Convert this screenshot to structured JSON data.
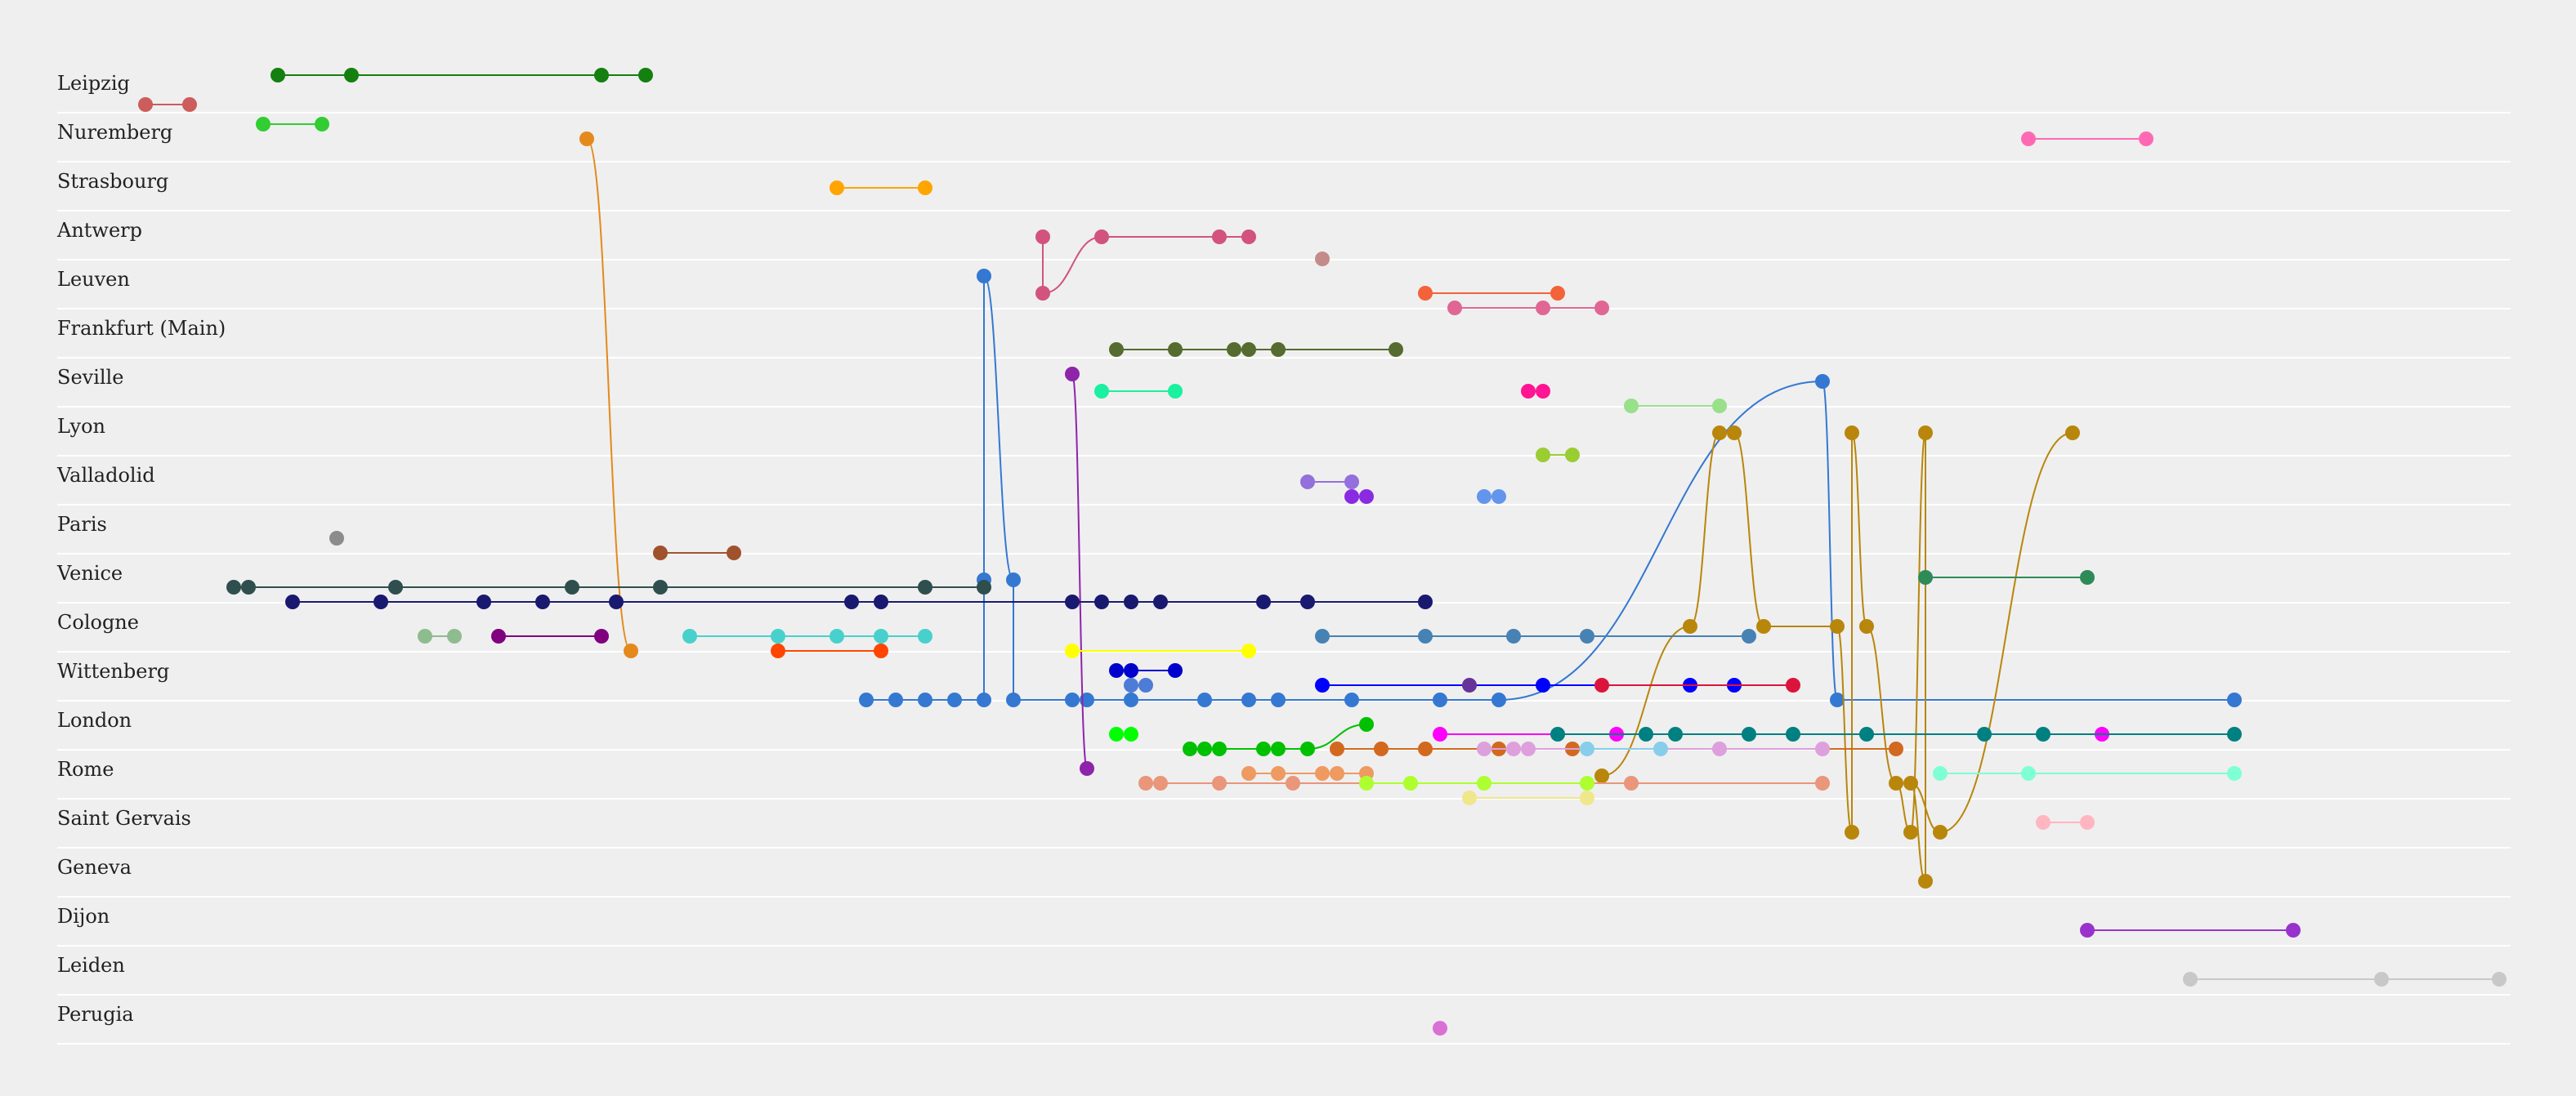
{
  "chart_data": {
    "type": "scatter",
    "title": "",
    "xlabel": "",
    "ylabel": "",
    "x_unit": "column index (no axis printed)",
    "xlim": [
      0,
      84
    ],
    "grid": "horizontal row separators",
    "rows": [
      "Leipzig",
      "Nuremberg",
      "Strasbourg",
      "Antwerp",
      "Leuven",
      "Frankfurt (Main)",
      "Seville",
      "Lyon",
      "Valladolid",
      "Paris",
      "Venice",
      "Cologne",
      "Wittenberg",
      "London",
      "Rome",
      "Saint Gervais",
      "Geneva",
      "Dijon",
      "Leiden",
      "Perugia"
    ],
    "series": [
      {
        "color": "#cd5c5c",
        "points": [
          [
            3,
            0,
            0.3
          ],
          [
            4.5,
            0,
            0.3
          ]
        ]
      },
      {
        "color": "#13800f",
        "points": [
          [
            7.5,
            0,
            -0.3
          ],
          [
            10,
            0,
            -0.3
          ],
          [
            18.5,
            0,
            -0.3
          ],
          [
            20,
            0,
            -0.3
          ]
        ]
      },
      {
        "color": "#32cd32",
        "points": [
          [
            7,
            1,
            -0.3
          ],
          [
            9,
            1,
            -0.3
          ]
        ]
      },
      {
        "color": "#e4891c",
        "points": [
          [
            18,
            1,
            0
          ],
          [
            19.5,
            11,
            0.45
          ]
        ]
      },
      {
        "color": "#ff69b4",
        "points": [
          [
            67,
            1,
            0
          ],
          [
            71,
            1,
            0
          ]
        ]
      },
      {
        "color": "#ffa500",
        "points": [
          [
            26.5,
            2,
            0
          ],
          [
            29.5,
            2,
            0
          ]
        ]
      },
      {
        "color": "#d1537e",
        "points": [
          [
            33.5,
            3,
            0
          ],
          [
            33.5,
            4,
            0.15
          ],
          [
            35.5,
            3,
            0
          ],
          [
            39.5,
            3,
            0
          ],
          [
            40.5,
            3,
            0
          ]
        ]
      },
      {
        "color": "#c48b8b",
        "points": [
          [
            43,
            3,
            0.45
          ]
        ]
      },
      {
        "color": "#3478d1",
        "points": [
          [
            27.5,
            12,
            0.45
          ],
          [
            28.5,
            12,
            0.45
          ],
          [
            29.5,
            12,
            0.45
          ],
          [
            30.5,
            12,
            0.45
          ],
          [
            31.5,
            12,
            0.45
          ],
          [
            31.5,
            10,
            0
          ],
          [
            31.5,
            3.8,
            0
          ],
          [
            32.5,
            10,
            0
          ],
          [
            32.5,
            12,
            0.45
          ],
          [
            34.5,
            12,
            0.45
          ],
          [
            35,
            12,
            0.45
          ],
          [
            36.5,
            12,
            0.45
          ],
          [
            39,
            12,
            0.45
          ],
          [
            40.5,
            12,
            0.45
          ],
          [
            41.5,
            12,
            0.45
          ],
          [
            44,
            12,
            0.45
          ],
          [
            47,
            12,
            0.45
          ],
          [
            49,
            12,
            0.45
          ],
          [
            60,
            5.95,
            0
          ],
          [
            60.5,
            12,
            0.45
          ],
          [
            74,
            12,
            0.45
          ]
        ]
      },
      {
        "color": "#f4623a",
        "points": [
          [
            46.5,
            4,
            0.15
          ],
          [
            51,
            4,
            0.15
          ]
        ]
      },
      {
        "color": "#e06694",
        "points": [
          [
            47.5,
            4,
            0.45
          ],
          [
            50.5,
            4,
            0.45
          ],
          [
            52.5,
            4,
            0.45
          ]
        ]
      },
      {
        "color": "#556b2f",
        "points": [
          [
            36,
            5,
            0.3
          ],
          [
            38,
            5,
            0.3
          ],
          [
            40,
            5,
            0.3
          ],
          [
            40.5,
            5,
            0.3
          ],
          [
            41.5,
            5,
            0.3
          ],
          [
            45.5,
            5,
            0.3
          ]
        ]
      },
      {
        "color": "#8e24aa",
        "points": [
          [
            34.5,
            5.8,
            0
          ],
          [
            35,
            13.85,
            0
          ]
        ]
      },
      {
        "color": "#19f0a0",
        "points": [
          [
            35.5,
            6,
            0.15
          ],
          [
            38,
            6,
            0.15
          ]
        ]
      },
      {
        "color": "#ff1493",
        "points": [
          [
            50,
            6,
            0.15
          ],
          [
            50.5,
            6,
            0.15
          ]
        ]
      },
      {
        "color": "#98e08a",
        "points": [
          [
            53.5,
            6,
            0.45
          ],
          [
            56.5,
            6,
            0.45
          ]
        ]
      },
      {
        "color": "#b8860b",
        "points": [
          [
            52.5,
            14,
            0
          ],
          [
            55.5,
            11,
            -0.05
          ],
          [
            56.5,
            7,
            0
          ],
          [
            57,
            7,
            0
          ],
          [
            58,
            11,
            -0.05
          ],
          [
            60.5,
            11,
            -0.05
          ],
          [
            61,
            15,
            0.15
          ],
          [
            61,
            7,
            0
          ],
          [
            61.5,
            11,
            -0.05
          ],
          [
            62.5,
            14,
            0.15
          ],
          [
            63,
            15,
            0.15
          ],
          [
            63.5,
            7,
            0
          ],
          [
            63.5,
            16,
            0.15
          ],
          [
            63,
            14,
            0.15
          ],
          [
            64,
            15,
            0.15
          ],
          [
            68.5,
            7,
            0
          ]
        ]
      },
      {
        "color": "#9acd32",
        "points": [
          [
            50.5,
            7,
            0.45
          ],
          [
            51.5,
            7,
            0.45
          ]
        ]
      },
      {
        "color": "#9370db",
        "points": [
          [
            42.5,
            8,
            0
          ],
          [
            44,
            8,
            0
          ]
        ]
      },
      {
        "color": "#8a2be2",
        "points": [
          [
            44,
            8,
            0.3
          ],
          [
            44.5,
            8,
            0.3
          ]
        ]
      },
      {
        "color": "#6495ed",
        "points": [
          [
            48.5,
            8,
            0.3
          ],
          [
            49,
            8,
            0.3
          ]
        ]
      },
      {
        "color": "#8c8c8c",
        "points": [
          [
            9.5,
            9,
            0.15
          ]
        ]
      },
      {
        "color": "#a0522d",
        "points": [
          [
            20.5,
            9,
            0.45
          ],
          [
            23,
            9,
            0.45
          ]
        ]
      },
      {
        "color": "#2f4f4f",
        "points": [
          [
            6,
            10,
            0.15
          ],
          [
            6.5,
            10,
            0.15
          ],
          [
            11.5,
            10,
            0.15
          ],
          [
            17.5,
            10,
            0.15
          ],
          [
            20.5,
            10,
            0.15
          ],
          [
            29.5,
            10,
            0.15
          ],
          [
            31.5,
            10,
            0.15
          ]
        ]
      },
      {
        "color": "#2e8b57",
        "points": [
          [
            63.5,
            10,
            -0.05
          ],
          [
            69,
            10,
            -0.05
          ]
        ]
      },
      {
        "color": "#191970",
        "points": [
          [
            8,
            10,
            0.45
          ],
          [
            11,
            10,
            0.45
          ],
          [
            14.5,
            10,
            0.45
          ],
          [
            16.5,
            10,
            0.45
          ],
          [
            19,
            10,
            0.45
          ],
          [
            27,
            10,
            0.45
          ],
          [
            28,
            10,
            0.45
          ],
          [
            34.5,
            10,
            0.45
          ],
          [
            35.5,
            10,
            0.45
          ],
          [
            36.5,
            10,
            0.45
          ],
          [
            37.5,
            10,
            0.45
          ],
          [
            41,
            10,
            0.45
          ],
          [
            42.5,
            10,
            0.45
          ],
          [
            46.5,
            10,
            0.45
          ]
        ]
      },
      {
        "color": "#8fbc8f",
        "points": [
          [
            12.5,
            11,
            0.15
          ],
          [
            13.5,
            11,
            0.15
          ]
        ]
      },
      {
        "color": "#800080",
        "points": [
          [
            15,
            11,
            0.15
          ],
          [
            18.5,
            11,
            0.15
          ]
        ]
      },
      {
        "color": "#48d1cc",
        "points": [
          [
            21.5,
            11,
            0.15
          ],
          [
            24.5,
            11,
            0.15
          ],
          [
            26.5,
            11,
            0.15
          ],
          [
            28,
            11,
            0.15
          ],
          [
            29.5,
            11,
            0.15
          ]
        ]
      },
      {
        "color": "#4682b4",
        "points": [
          [
            43,
            11,
            0.15
          ],
          [
            46.5,
            11,
            0.15
          ],
          [
            49.5,
            11,
            0.15
          ],
          [
            52,
            11,
            0.15
          ],
          [
            57.5,
            11,
            0.15
          ]
        ]
      },
      {
        "color": "#ff4500",
        "points": [
          [
            24.5,
            11,
            0.45
          ],
          [
            28,
            11,
            0.45
          ]
        ]
      },
      {
        "color": "#ffff00",
        "points": [
          [
            34.5,
            11,
            0.45
          ],
          [
            40.5,
            11,
            0.45
          ]
        ]
      },
      {
        "color": "#4d7cd6",
        "points": [
          [
            36.5,
            12,
            0.15
          ],
          [
            37,
            12,
            0.15
          ]
        ]
      },
      {
        "color": "#0000ff",
        "points": [
          [
            43,
            12,
            0.15
          ],
          [
            50.5,
            12,
            0.15
          ],
          [
            55.5,
            12,
            0.15
          ],
          [
            57,
            12,
            0.15
          ]
        ]
      },
      {
        "color": "#0000cd",
        "points": [
          [
            36,
            12,
            -0.15
          ],
          [
            36.5,
            12,
            -0.15
          ],
          [
            38,
            12,
            -0.15
          ]
        ]
      },
      {
        "color": "#663399",
        "points": [
          [
            48,
            12,
            0.15
          ]
        ]
      },
      {
        "color": "#dc143c",
        "points": [
          [
            52.5,
            12,
            0.15
          ],
          [
            59,
            12,
            0.15
          ]
        ]
      },
      {
        "color": "#ff00ff",
        "points": [
          [
            47,
            13,
            0.15
          ],
          [
            53,
            13,
            0.15
          ],
          [
            69.5,
            13,
            0.15
          ]
        ]
      },
      {
        "color": "#008080",
        "points": [
          [
            51,
            13,
            0.15
          ],
          [
            54,
            13,
            0.15
          ],
          [
            55,
            13,
            0.15
          ],
          [
            57.5,
            13,
            0.15
          ],
          [
            59,
            13,
            0.15
          ],
          [
            61.5,
            13,
            0.15
          ],
          [
            65.5,
            13,
            0.15
          ],
          [
            67.5,
            13,
            0.15
          ],
          [
            74,
            13,
            0.15
          ]
        ]
      },
      {
        "color": "#00ff00",
        "points": [
          [
            36,
            13,
            0.15
          ],
          [
            36.5,
            13,
            0.15
          ]
        ]
      },
      {
        "color": "#00c000",
        "points": [
          [
            38.5,
            13,
            0.45
          ],
          [
            39,
            13,
            0.45
          ],
          [
            39.5,
            13,
            0.45
          ],
          [
            41,
            13,
            0.45
          ],
          [
            41.5,
            13,
            0.45
          ],
          [
            42.5,
            13,
            0.45
          ],
          [
            44.5,
            13,
            -0.05
          ]
        ]
      },
      {
        "color": "#d2691e",
        "points": [
          [
            43.5,
            13,
            0.45
          ],
          [
            45,
            13,
            0.45
          ],
          [
            46.5,
            13,
            0.45
          ],
          [
            49,
            13,
            0.45
          ],
          [
            51.5,
            13,
            0.45
          ],
          [
            62.5,
            13,
            0.45
          ]
        ]
      },
      {
        "color": "#dda0dd",
        "points": [
          [
            48.5,
            13,
            0.45
          ],
          [
            49.5,
            13,
            0.45
          ],
          [
            50,
            13,
            0.45
          ],
          [
            56.5,
            13,
            0.45
          ],
          [
            60,
            13,
            0.45
          ]
        ]
      },
      {
        "color": "#87ceeb",
        "points": [
          [
            52,
            13,
            0.45
          ],
          [
            54.5,
            13,
            0.45
          ]
        ]
      },
      {
        "color": "#ee9a60",
        "points": [
          [
            40.5,
            14,
            -0.05
          ],
          [
            41.5,
            14,
            -0.05
          ],
          [
            43,
            14,
            -0.05
          ],
          [
            43.5,
            14,
            -0.05
          ],
          [
            44.5,
            14,
            -0.05
          ]
        ]
      },
      {
        "color": "#e9967a",
        "points": [
          [
            37,
            14,
            0.15
          ],
          [
            37.5,
            14,
            0.15
          ],
          [
            39.5,
            14,
            0.15
          ],
          [
            42,
            14,
            0.15
          ],
          [
            53.5,
            14,
            0.15
          ],
          [
            60,
            14,
            0.15
          ]
        ]
      },
      {
        "color": "#adff2f",
        "points": [
          [
            44.5,
            14,
            0.15
          ],
          [
            46,
            14,
            0.15
          ],
          [
            48.5,
            14,
            0.15
          ],
          [
            52,
            14,
            0.15
          ]
        ]
      },
      {
        "color": "#f0e68c",
        "points": [
          [
            48,
            14,
            0.45
          ],
          [
            52,
            14,
            0.45
          ]
        ]
      },
      {
        "color": "#7fffd4",
        "points": [
          [
            64,
            14,
            -0.05
          ],
          [
            67,
            14,
            -0.05
          ],
          [
            74,
            14,
            -0.05
          ]
        ]
      },
      {
        "color": "#ffb6c1",
        "points": [
          [
            67.5,
            15,
            -0.05
          ],
          [
            69,
            15,
            -0.05
          ]
        ]
      },
      {
        "color": "#9932cc",
        "points": [
          [
            69,
            17,
            0.15
          ],
          [
            76,
            17,
            0.15
          ]
        ]
      },
      {
        "color": "#c8c8c8",
        "points": [
          [
            72.5,
            18,
            0.15
          ],
          [
            79,
            18,
            0.15
          ],
          [
            83,
            18,
            0.15
          ]
        ]
      },
      {
        "color": "#da70d6",
        "points": [
          [
            47,
            19,
            0.15
          ]
        ]
      }
    ]
  }
}
